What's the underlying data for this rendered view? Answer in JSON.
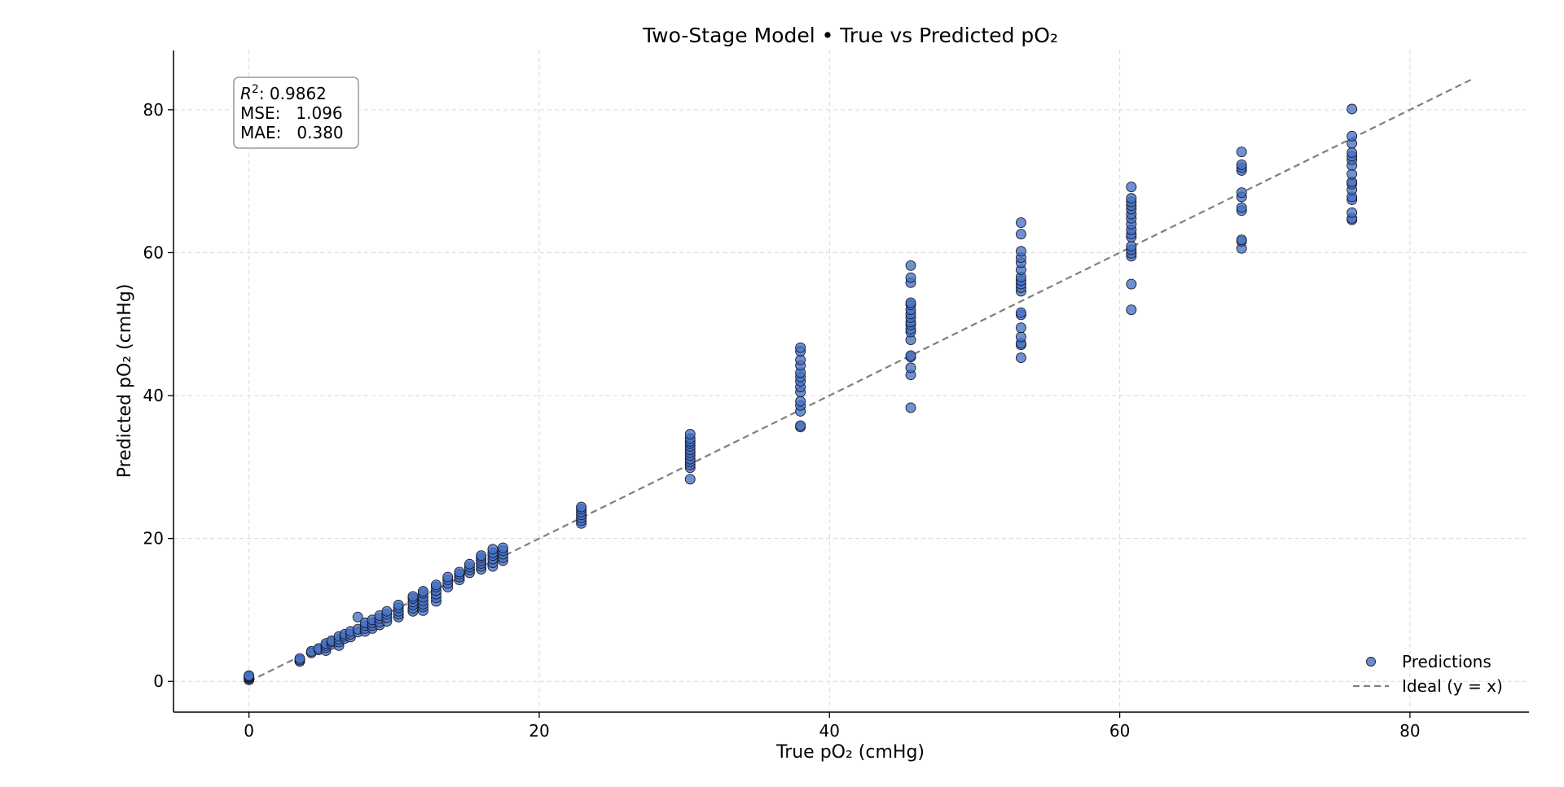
{
  "chart_data": {
    "type": "scatter",
    "title": "Two-Stage Model • True vs Predicted pO₂",
    "xlabel": "True pO₂ (cmHg)",
    "ylabel": "Predicted pO₂ (cmHg)",
    "xlim": [
      -5.2,
      88.2
    ],
    "ylim": [
      -4.3,
      88.3
    ],
    "xticks": [
      0,
      20,
      40,
      60,
      80
    ],
    "yticks": [
      0,
      20,
      40,
      60,
      80
    ],
    "grid": true,
    "stats": {
      "r2_label": "R",
      "r2_exponent": "2",
      "r2_value": ":  0.9862",
      "mse": "MSE:   1.096",
      "mae": "MAE:   0.380"
    },
    "legend": {
      "position": "lower-right",
      "entries": [
        "Predictions",
        "Ideal (y = x)"
      ]
    },
    "colors": {
      "marker_fill": "#4472c4",
      "marker_edge": "#1a1a2e",
      "ideal_line": "#7f7f7f",
      "grid": "#d9d9d9"
    },
    "ideal_line": {
      "x": [
        0,
        84.2
      ],
      "y": [
        0,
        84.2
      ]
    },
    "series": [
      {
        "name": "Predictions",
        "groups": [
          {
            "x": 0,
            "y": [
              0.2,
              0.4,
              0.5,
              0.6,
              0.7,
              0.8
            ]
          },
          {
            "x": 3.5,
            "y": [
              2.8,
              3.0,
              3.2
            ]
          },
          {
            "x": 4.3,
            "y": [
              4.0,
              4.2
            ]
          },
          {
            "x": 4.8,
            "y": [
              4.4,
              4.6
            ]
          },
          {
            "x": 5.3,
            "y": [
              4.3,
              4.7,
              5.0,
              5.3
            ]
          },
          {
            "x": 5.7,
            "y": [
              5.2,
              5.5,
              5.7
            ]
          },
          {
            "x": 6.2,
            "y": [
              5.0,
              5.5,
              5.9,
              6.3
            ]
          },
          {
            "x": 6.6,
            "y": [
              6.0,
              6.3,
              6.6
            ]
          },
          {
            "x": 7.0,
            "y": [
              6.2,
              6.6,
              7.0
            ]
          },
          {
            "x": 7.5,
            "y": [
              6.9,
              7.3,
              9.0
            ]
          },
          {
            "x": 8.0,
            "y": [
              7.0,
              7.4,
              7.8,
              8.2
            ]
          },
          {
            "x": 8.5,
            "y": [
              7.4,
              7.8,
              8.2,
              8.6
            ]
          },
          {
            "x": 9.0,
            "y": [
              7.9,
              8.3,
              8.8,
              9.2
            ]
          },
          {
            "x": 9.5,
            "y": [
              8.4,
              8.9,
              9.4,
              9.8
            ]
          },
          {
            "x": 10.3,
            "y": [
              9.0,
              9.4,
              9.8,
              10.3,
              10.7
            ]
          },
          {
            "x": 11.3,
            "y": [
              9.8,
              10.2,
              10.7,
              11.1,
              11.6,
              11.9
            ]
          },
          {
            "x": 12.0,
            "y": [
              9.9,
              10.4,
              10.8,
              11.3,
              11.8,
              12.3,
              12.6
            ]
          },
          {
            "x": 12.9,
            "y": [
              11.2,
              11.7,
              12.2,
              12.7,
              13.2,
              13.5
            ]
          },
          {
            "x": 13.7,
            "y": [
              13.2,
              13.7,
              14.2,
              14.6
            ]
          },
          {
            "x": 14.5,
            "y": [
              14.2,
              14.6,
              15.0,
              15.3
            ]
          },
          {
            "x": 15.2,
            "y": [
              15.2,
              15.6,
              16.0,
              16.4
            ]
          },
          {
            "x": 16.0,
            "y": [
              15.7,
              16.1,
              16.5,
              16.9,
              17.3,
              17.6
            ]
          },
          {
            "x": 16.8,
            "y": [
              16.1,
              16.6,
              17.1,
              17.6,
              18.0,
              18.5
            ]
          },
          {
            "x": 17.5,
            "y": [
              16.9,
              17.3,
              17.8,
              18.3,
              18.7
            ]
          },
          {
            "x": 22.9,
            "y": [
              22.1,
              22.5,
              22.9,
              23.3,
              23.7,
              24.1,
              24.4
            ]
          },
          {
            "x": 30.4,
            "y": [
              28.3,
              29.9,
              30.3,
              30.7,
              31.1,
              31.6,
              32.0,
              32.4,
              32.9,
              33.3,
              33.6,
              34.0,
              34.6
            ]
          },
          {
            "x": 38.0,
            "y": [
              35.6,
              35.8,
              37.8,
              38.6,
              39.2,
              40.5,
              41.2,
              42.0,
              42.6,
              43.2,
              44.2,
              45.0,
              46.2,
              46.7
            ]
          },
          {
            "x": 45.6,
            "y": [
              38.3,
              42.9,
              43.9,
              45.4,
              45.6,
              47.8,
              48.9,
              49.3,
              49.9,
              50.3,
              50.9,
              51.4,
              52.0,
              52.7,
              53.0,
              55.8,
              56.5,
              58.2
            ]
          },
          {
            "x": 53.2,
            "y": [
              45.3,
              47.1,
              47.3,
              48.2,
              49.5,
              51.3,
              51.6,
              54.6,
              55.1,
              55.6,
              56.1,
              56.6,
              57.6,
              58.6,
              59.3,
              60.2,
              62.6,
              64.2
            ]
          },
          {
            "x": 60.8,
            "y": [
              52.0,
              55.6,
              59.5,
              59.9,
              60.4,
              60.9,
              62.2,
              62.6,
              63.2,
              64.0,
              64.8,
              65.4,
              66.1,
              66.6,
              67.1,
              67.6,
              69.2
            ]
          },
          {
            "x": 68.4,
            "y": [
              60.6,
              61.6,
              61.8,
              65.9,
              66.3,
              67.8,
              68.4,
              71.5,
              71.9,
              72.3,
              74.1
            ]
          },
          {
            "x": 76.0,
            "y": [
              64.6,
              64.8,
              65.6,
              67.4,
              67.8,
              68.8,
              69.6,
              69.9,
              71.0,
              72.2,
              73.0,
              73.5,
              74.0,
              75.3,
              76.3,
              80.1
            ]
          }
        ]
      }
    ]
  }
}
